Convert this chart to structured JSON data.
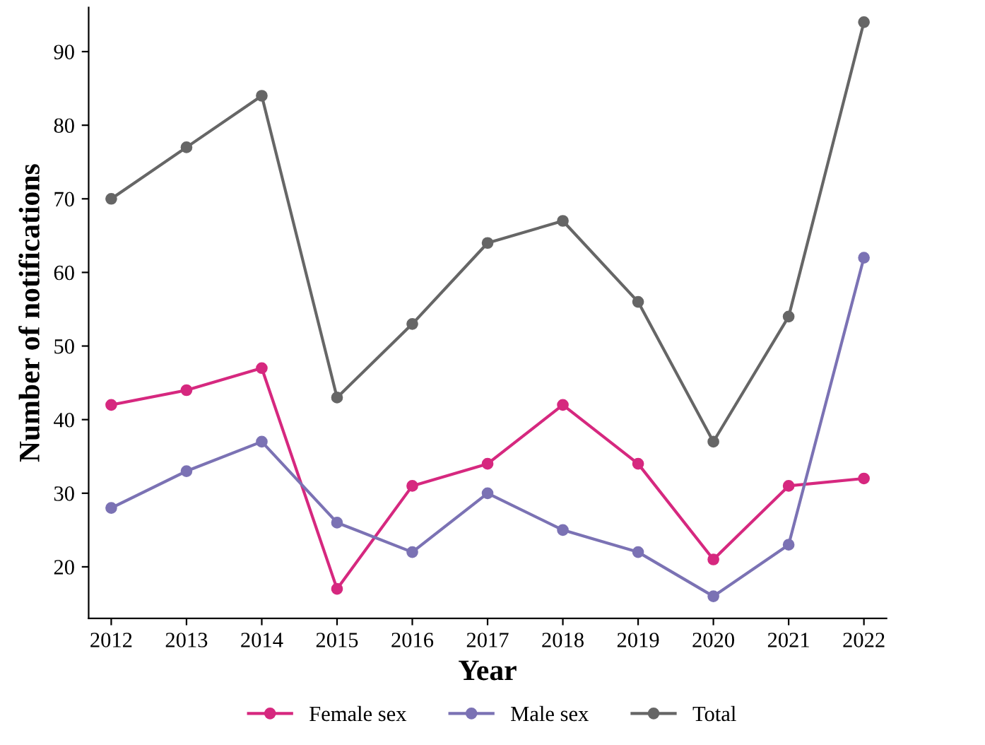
{
  "chart_data": {
    "type": "line",
    "xlabel": "Year",
    "ylabel": "Number of notifications",
    "categories": [
      "2012",
      "2013",
      "2014",
      "2015",
      "2016",
      "2017",
      "2018",
      "2019",
      "2020",
      "2021",
      "2022"
    ],
    "series": [
      {
        "name": "Female sex",
        "color": "#d6287f",
        "values": [
          42,
          44,
          47,
          17,
          31,
          34,
          42,
          34,
          21,
          31,
          32
        ]
      },
      {
        "name": "Male sex",
        "color": "#7b72b4",
        "values": [
          28,
          33,
          37,
          26,
          22,
          30,
          25,
          22,
          16,
          23,
          62
        ]
      },
      {
        "name": "Total",
        "color": "#666666",
        "values": [
          70,
          77,
          84,
          43,
          53,
          64,
          67,
          56,
          37,
          54,
          94
        ]
      }
    ],
    "ylim": [
      13,
      96
    ],
    "yticks": [
      20,
      30,
      40,
      50,
      60,
      70,
      80,
      90
    ],
    "grid": false,
    "legend": "bottom",
    "marker": "circle",
    "line_style": "solid"
  }
}
